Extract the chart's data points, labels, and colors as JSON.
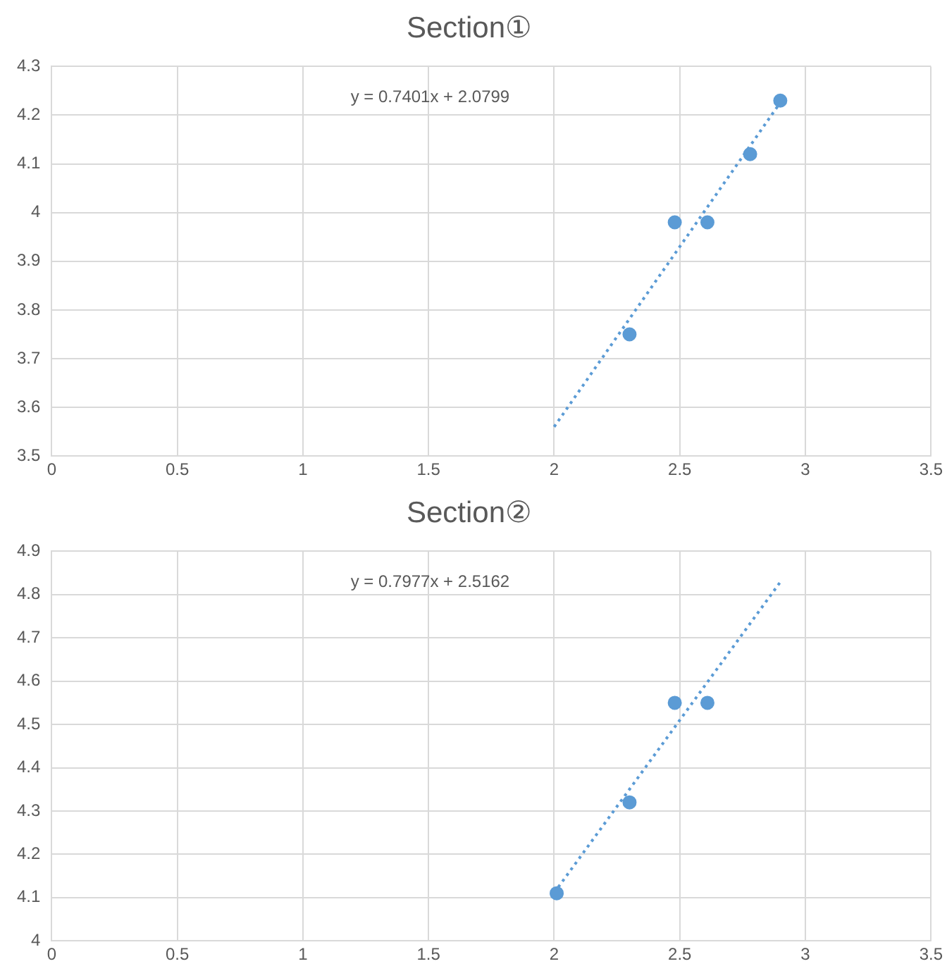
{
  "chart_data": [
    {
      "type": "scatter",
      "title": "Section①",
      "annotations": [
        "y = 0.7401x + 2.0799"
      ],
      "xlim": [
        0,
        3.5
      ],
      "xticks": [
        0,
        0.5,
        1,
        1.5,
        2,
        2.5,
        3,
        3.5
      ],
      "ylim": [
        3.5,
        4.3
      ],
      "yticks": [
        3.5,
        3.6,
        3.7,
        3.8,
        3.9,
        4,
        4.1,
        4.2,
        4.3
      ],
      "grid": true,
      "legend": false,
      "marker": "circle",
      "series": [
        {
          "color": "#5b9bd5",
          "x": [
            2.3,
            2.48,
            2.61,
            2.78,
            2.9
          ],
          "values": [
            3.75,
            3.98,
            3.98,
            4.12,
            4.23
          ]
        },
        {
          "type": "line",
          "color": "#5b9bd5",
          "line_style": "dotted",
          "marker": "none",
          "x": [
            2,
            2.9
          ],
          "values": [
            3.56,
            4.226
          ]
        }
      ]
    },
    {
      "type": "scatter",
      "title": "Section②",
      "annotations": [
        "y = 0.7977x + 2.5162"
      ],
      "xlim": [
        0,
        3.5
      ],
      "xticks": [
        0,
        0.5,
        1,
        1.5,
        2,
        2.5,
        3,
        3.5
      ],
      "ylim": [
        4,
        4.9
      ],
      "yticks": [
        4,
        4.1,
        4.2,
        4.3,
        4.4,
        4.5,
        4.6,
        4.7,
        4.8,
        4.9
      ],
      "grid": true,
      "legend": false,
      "marker": "circle",
      "series": [
        {
          "color": "#5b9bd5",
          "x": [
            2.01,
            2.3,
            2.48,
            2.61
          ],
          "values": [
            4.11,
            4.32,
            4.55,
            4.55
          ]
        },
        {
          "type": "line",
          "color": "#5b9bd5",
          "line_style": "dotted",
          "marker": "none",
          "x": [
            2,
            2.9
          ],
          "values": [
            4.111,
            4.829
          ]
        }
      ]
    }
  ]
}
